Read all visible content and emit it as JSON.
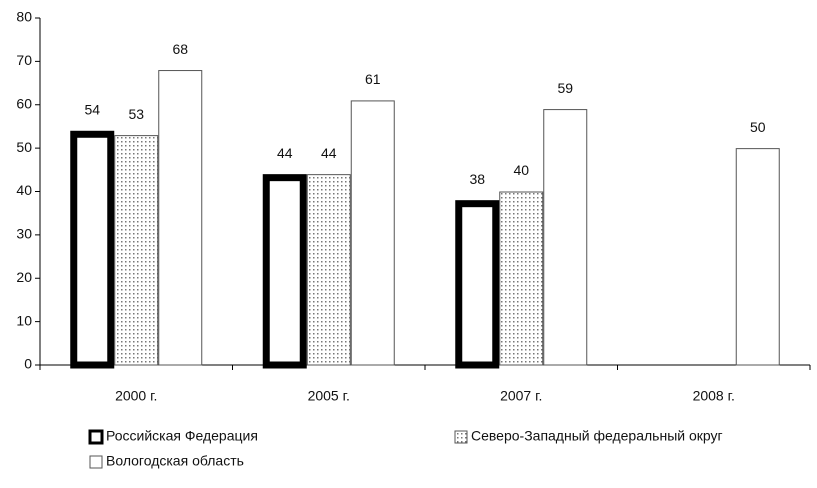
{
  "chart_data": {
    "type": "bar",
    "categories": [
      "2000 г.",
      "2005 г.",
      "2007 г.",
      "2008 г."
    ],
    "series": [
      {
        "name": "Российская Федерация",
        "color": "#000000",
        "values": [
          54,
          44,
          38,
          null
        ]
      },
      {
        "name": "Северо-Западный федеральный округ",
        "color": "#d8d8d8",
        "values": [
          53,
          44,
          40,
          null
        ]
      },
      {
        "name": "Вологодская область",
        "color": "#ffffff",
        "values": [
          68,
          61,
          59,
          50
        ]
      }
    ],
    "ylim": [
      0,
      80
    ],
    "yticks": [
      0,
      10,
      20,
      30,
      40,
      50,
      60,
      70,
      80
    ],
    "grid": false
  }
}
